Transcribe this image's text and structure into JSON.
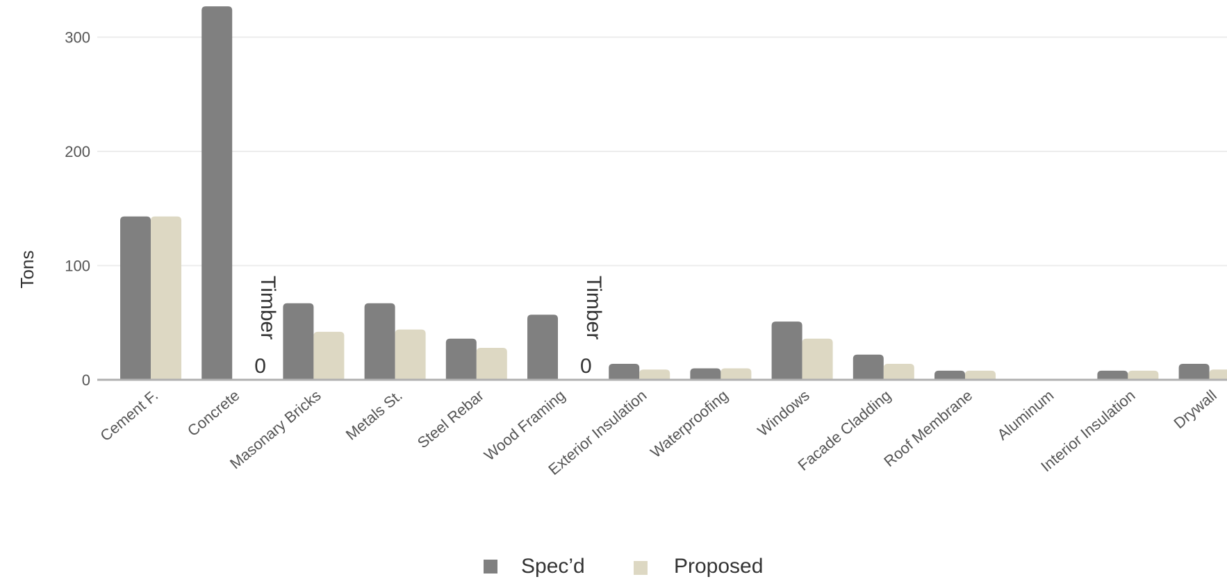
{
  "chart_data": {
    "type": "bar",
    "ylabel": "Tons",
    "xlabel": "",
    "ylim": [
      0,
      330
    ],
    "yticks": [
      0,
      100,
      200,
      300
    ],
    "grid": true,
    "legend_position": "bottom-center",
    "categories": [
      "Cement F.",
      "Concrete",
      "Masonary Bricks",
      "Metals St.",
      "Steel Rebar",
      "Wood Framing",
      "Exterior Insulation",
      "Waterproofing",
      "Windows",
      "Facade Cladding",
      "Roof Membrane",
      "Aluminum",
      "Interior Insulation",
      "Drywall"
    ],
    "series": [
      {
        "name": "Spec’d",
        "color": "#808080",
        "values": [
          143,
          327,
          67,
          67,
          36,
          57,
          14,
          10,
          51,
          22,
          8,
          0,
          8,
          14
        ]
      },
      {
        "name": "Proposed",
        "color": "#ddd8c3",
        "values": [
          143,
          0,
          42,
          44,
          28,
          0,
          9,
          10,
          36,
          14,
          8,
          0,
          8,
          9
        ]
      }
    ],
    "annotations": [
      {
        "category": "Concrete",
        "text": "Timber 0"
      },
      {
        "category": "Wood Framing",
        "text": "Timber 0"
      }
    ]
  }
}
